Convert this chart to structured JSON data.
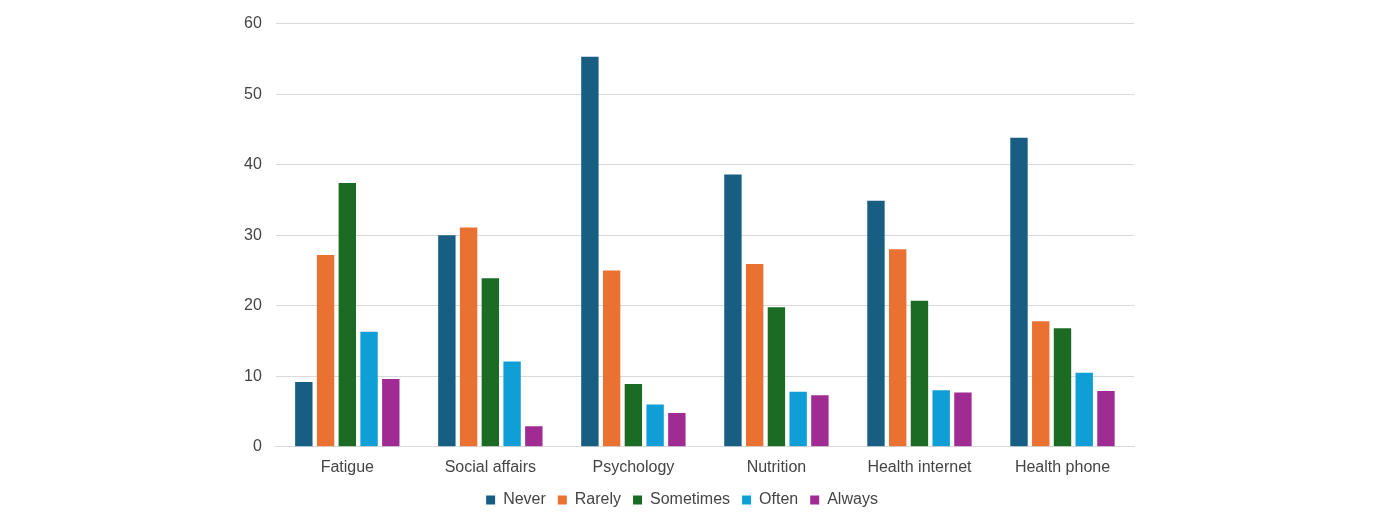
{
  "chart_data": {
    "type": "bar",
    "categories": [
      "Fatigue",
      "Social affairs",
      "Psychology",
      "Nutrition",
      "Health internet",
      "Health phone"
    ],
    "series": [
      {
        "name": "Never",
        "color": "#175e82",
        "values": [
          9.2,
          30.0,
          55.3,
          38.6,
          34.9,
          43.8
        ]
      },
      {
        "name": "Rarely",
        "color": "#e97132",
        "values": [
          27.2,
          31.1,
          25.0,
          25.9,
          28.0,
          17.8
        ]
      },
      {
        "name": "Sometimes",
        "color": "#1b6b24",
        "values": [
          37.4,
          23.9,
          8.9,
          19.8,
          20.7,
          16.8
        ]
      },
      {
        "name": "Often",
        "color": "#0f9fd6",
        "values": [
          16.3,
          12.1,
          6.0,
          7.8,
          8.0,
          10.5
        ]
      },
      {
        "name": "Always",
        "color": "#a02b93",
        "values": [
          9.6,
          2.9,
          4.8,
          7.3,
          7.7,
          7.9
        ]
      }
    ],
    "ylim": [
      0,
      60
    ],
    "yticks": [
      0,
      10,
      20,
      30,
      40,
      50,
      60
    ],
    "grid": "y",
    "legend": "bottom"
  }
}
